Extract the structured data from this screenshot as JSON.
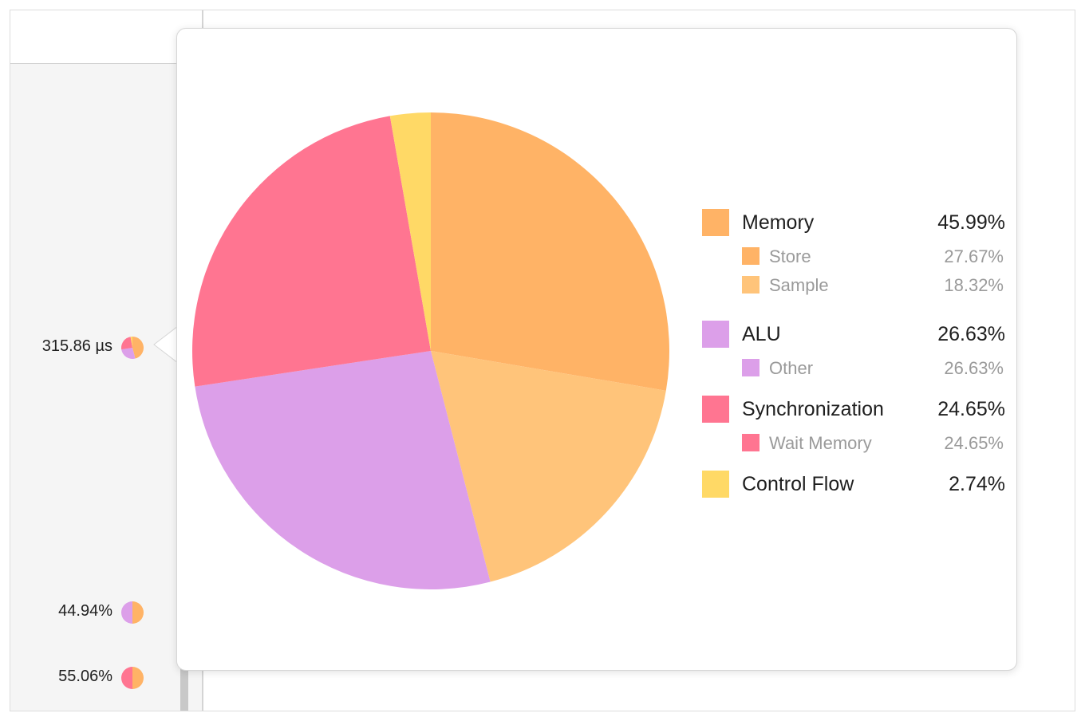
{
  "left_rows": [
    {
      "label": "315.86 µs",
      "mini_pie": [
        {
          "value": 45.99,
          "color": "#ffb366"
        },
        {
          "value": 26.63,
          "color": "#dc9fe9"
        },
        {
          "value": 24.65,
          "color": "#ff7591"
        },
        {
          "value": 2.74,
          "color": "#ffd966"
        }
      ]
    },
    {
      "label": "44.94%",
      "mini_pie": [
        {
          "value": 50,
          "color": "#ffb366"
        },
        {
          "value": 50,
          "color": "#dc9fe9"
        }
      ]
    },
    {
      "label": "55.06%",
      "mini_pie": [
        {
          "value": 50,
          "color": "#ffb366"
        },
        {
          "value": 50,
          "color": "#ff7591"
        }
      ]
    }
  ],
  "chart_data": {
    "type": "pie",
    "start_angle_deg": 0,
    "direction": "clockwise",
    "slices": [
      {
        "name": "Store",
        "value": 27.67,
        "color": "#ffb366"
      },
      {
        "name": "Sample",
        "value": 18.32,
        "color": "#ffc47a"
      },
      {
        "name": "Other",
        "value": 26.63,
        "color": "#dc9fe9"
      },
      {
        "name": "Wait Memory",
        "value": 24.65,
        "color": "#ff7591"
      },
      {
        "name": "Control Flow",
        "value": 2.74,
        "color": "#ffd966"
      }
    ],
    "legend": [
      {
        "label": "Memory",
        "value": "45.99%",
        "color": "#ffb366",
        "level": 0
      },
      {
        "label": "Store",
        "value": "27.67%",
        "color": "#ffb366",
        "level": 1
      },
      {
        "label": "Sample",
        "value": "18.32%",
        "color": "#ffc47a",
        "level": 1
      },
      {
        "label": "ALU",
        "value": "26.63%",
        "color": "#dc9fe9",
        "level": 0
      },
      {
        "label": "Other",
        "value": "26.63%",
        "color": "#dc9fe9",
        "level": 1
      },
      {
        "label": "Synchronization",
        "value": "24.65%",
        "color": "#ff7591",
        "level": 0
      },
      {
        "label": "Wait Memory",
        "value": "24.65%",
        "color": "#ff7591",
        "level": 1
      },
      {
        "label": "Control Flow",
        "value": "2.74%",
        "color": "#ffd966",
        "level": 0
      }
    ],
    "legend_position": "right"
  }
}
